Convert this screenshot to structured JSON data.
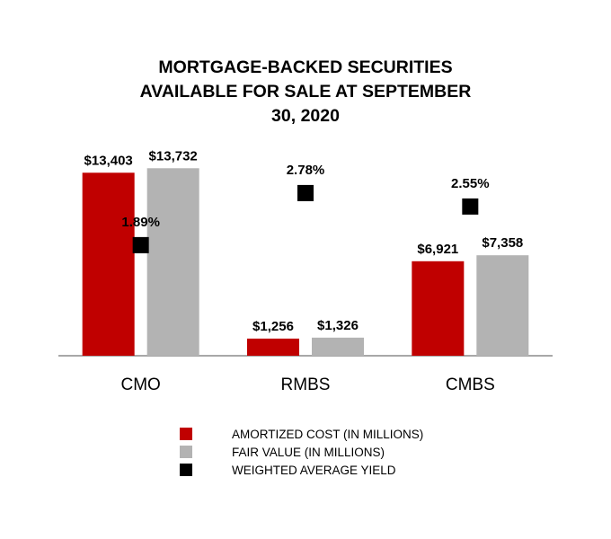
{
  "chart_data": {
    "type": "bar",
    "title_lines": [
      "MORTGAGE-BACKED SECURITIES",
      "AVAILABLE FOR SALE AT SEPTEMBER",
      "30, 2020"
    ],
    "categories": [
      "CMO",
      "RMBS",
      "CMBS"
    ],
    "series": [
      {
        "name": "AMORTIZED COST (IN MILLIONS)",
        "values": [
          13403,
          1256,
          6921
        ],
        "labels": [
          "$13,403",
          "$1,256",
          "$6,921"
        ],
        "color": "#c00000"
      },
      {
        "name": "FAIR VALUE (IN MILLIONS)",
        "values": [
          13732,
          1326,
          7358
        ],
        "labels": [
          "$13,732",
          "$1,326",
          "$7,358"
        ],
        "color": "#b3b3b3"
      }
    ],
    "yield_series": {
      "name": "WEIGHTED AVERAGE YIELD",
      "values": [
        1.89,
        2.78,
        2.55
      ],
      "labels": [
        "1.89%",
        "2.78%",
        "2.55%"
      ],
      "color": "#000000"
    },
    "ylim": [
      0,
      15000
    ],
    "yield_lim": [
      0,
      3.5
    ],
    "grid": false,
    "legend_position": "bottom"
  }
}
